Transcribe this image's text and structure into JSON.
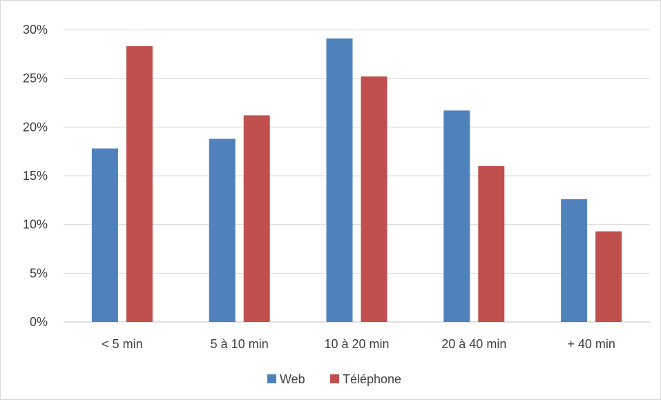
{
  "chart_data": {
    "type": "bar",
    "categories": [
      "< 5 min",
      "5 à 10 min",
      "10 à 20 min",
      "20 à 40 min",
      "+ 40 min"
    ],
    "series": [
      {
        "name": "Web",
        "color": "#4f81bd",
        "values": [
          0.178,
          0.188,
          0.291,
          0.217,
          0.126
        ]
      },
      {
        "name": "Téléphone",
        "color": "#c0504d",
        "values": [
          0.283,
          0.212,
          0.252,
          0.16,
          0.093
        ]
      }
    ],
    "ylim": [
      0,
      0.3
    ],
    "yticks": [
      "0%",
      "5%",
      "10%",
      "15%",
      "20%",
      "25%",
      "30%"
    ],
    "ytick_values": [
      0,
      0.05,
      0.1,
      0.15,
      0.2,
      0.25,
      0.3
    ],
    "grid": true,
    "legend_position": "bottom"
  }
}
